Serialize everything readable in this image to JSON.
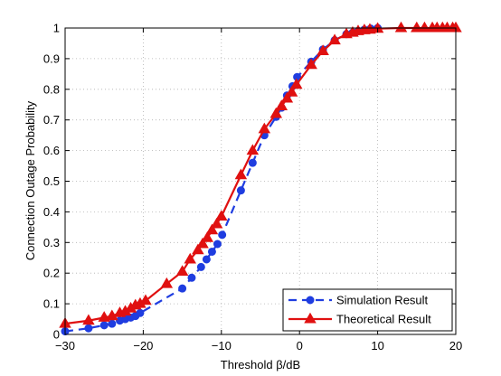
{
  "chart_data": {
    "type": "line",
    "xlabel": "Threshold β/dB",
    "ylabel": "Connection Outage Probability",
    "xlim": [
      -30,
      20
    ],
    "ylim": [
      0,
      1
    ],
    "xticks": [
      -30,
      -20,
      -10,
      0,
      10,
      20
    ],
    "yticks": [
      0,
      0.1,
      0.2,
      0.3,
      0.4,
      0.5,
      0.6,
      0.7,
      0.8,
      0.9,
      1
    ],
    "xtick_labels": [
      "−30",
      "−20",
      "−10",
      "0",
      "10",
      "20"
    ],
    "ytick_labels": [
      "0",
      "0.1",
      "0.2",
      "0.3",
      "0.4",
      "0.5",
      "0.6",
      "0.7",
      "0.8",
      "0.9",
      "1"
    ],
    "grid": true,
    "legend_position": "bottom-right",
    "series": [
      {
        "name": "Simulation Result",
        "color": "#1f3de0",
        "line_style": "dashed",
        "marker": "circle",
        "x": [
          -30,
          -27,
          -25,
          -24,
          -23,
          -22.3,
          -21.6,
          -21,
          -20.4,
          -15,
          -13.8,
          -12.6,
          -11.9,
          -11.2,
          -10.5,
          -9.9,
          -7.5,
          -6,
          -4.5,
          -3,
          -2.3,
          -1.6,
          -0.9,
          -0.3,
          1.5,
          3,
          4.5,
          6,
          6.8,
          7.5,
          8.3,
          9.1,
          10
        ],
        "y": [
          0.01,
          0.02,
          0.03,
          0.035,
          0.045,
          0.05,
          0.055,
          0.06,
          0.07,
          0.15,
          0.185,
          0.22,
          0.245,
          0.27,
          0.295,
          0.325,
          0.47,
          0.56,
          0.65,
          0.71,
          0.74,
          0.78,
          0.81,
          0.84,
          0.89,
          0.93,
          0.96,
          0.98,
          0.985,
          0.99,
          0.995,
          0.998,
          1.0
        ]
      },
      {
        "name": "Theoretical Result",
        "color": "#e01010",
        "line_style": "solid",
        "marker": "triangle",
        "x": [
          -30,
          -27,
          -25,
          -24,
          -23,
          -22.3,
          -21.6,
          -21,
          -20.4,
          -19.7,
          -17,
          -15,
          -14,
          -13,
          -12.4,
          -11.8,
          -11.2,
          -10.6,
          -10,
          -7.5,
          -6,
          -4.5,
          -3,
          -2.3,
          -1.6,
          -1,
          -0.4,
          1.5,
          3,
          4.5,
          6,
          6.8,
          7.5,
          8.3,
          9,
          10,
          13,
          15,
          16,
          17,
          17.6,
          18.3,
          18.9,
          19.6,
          20
        ],
        "y": [
          0.035,
          0.045,
          0.055,
          0.06,
          0.07,
          0.075,
          0.085,
          0.095,
          0.1,
          0.11,
          0.165,
          0.205,
          0.245,
          0.275,
          0.295,
          0.315,
          0.34,
          0.36,
          0.385,
          0.52,
          0.6,
          0.67,
          0.72,
          0.745,
          0.77,
          0.79,
          0.815,
          0.88,
          0.925,
          0.96,
          0.98,
          0.985,
          0.99,
          0.993,
          0.995,
          0.998,
          1.0,
          1.0,
          1.0,
          1.0,
          1.0,
          1.0,
          1.0,
          1.0,
          1.0
        ]
      }
    ]
  }
}
